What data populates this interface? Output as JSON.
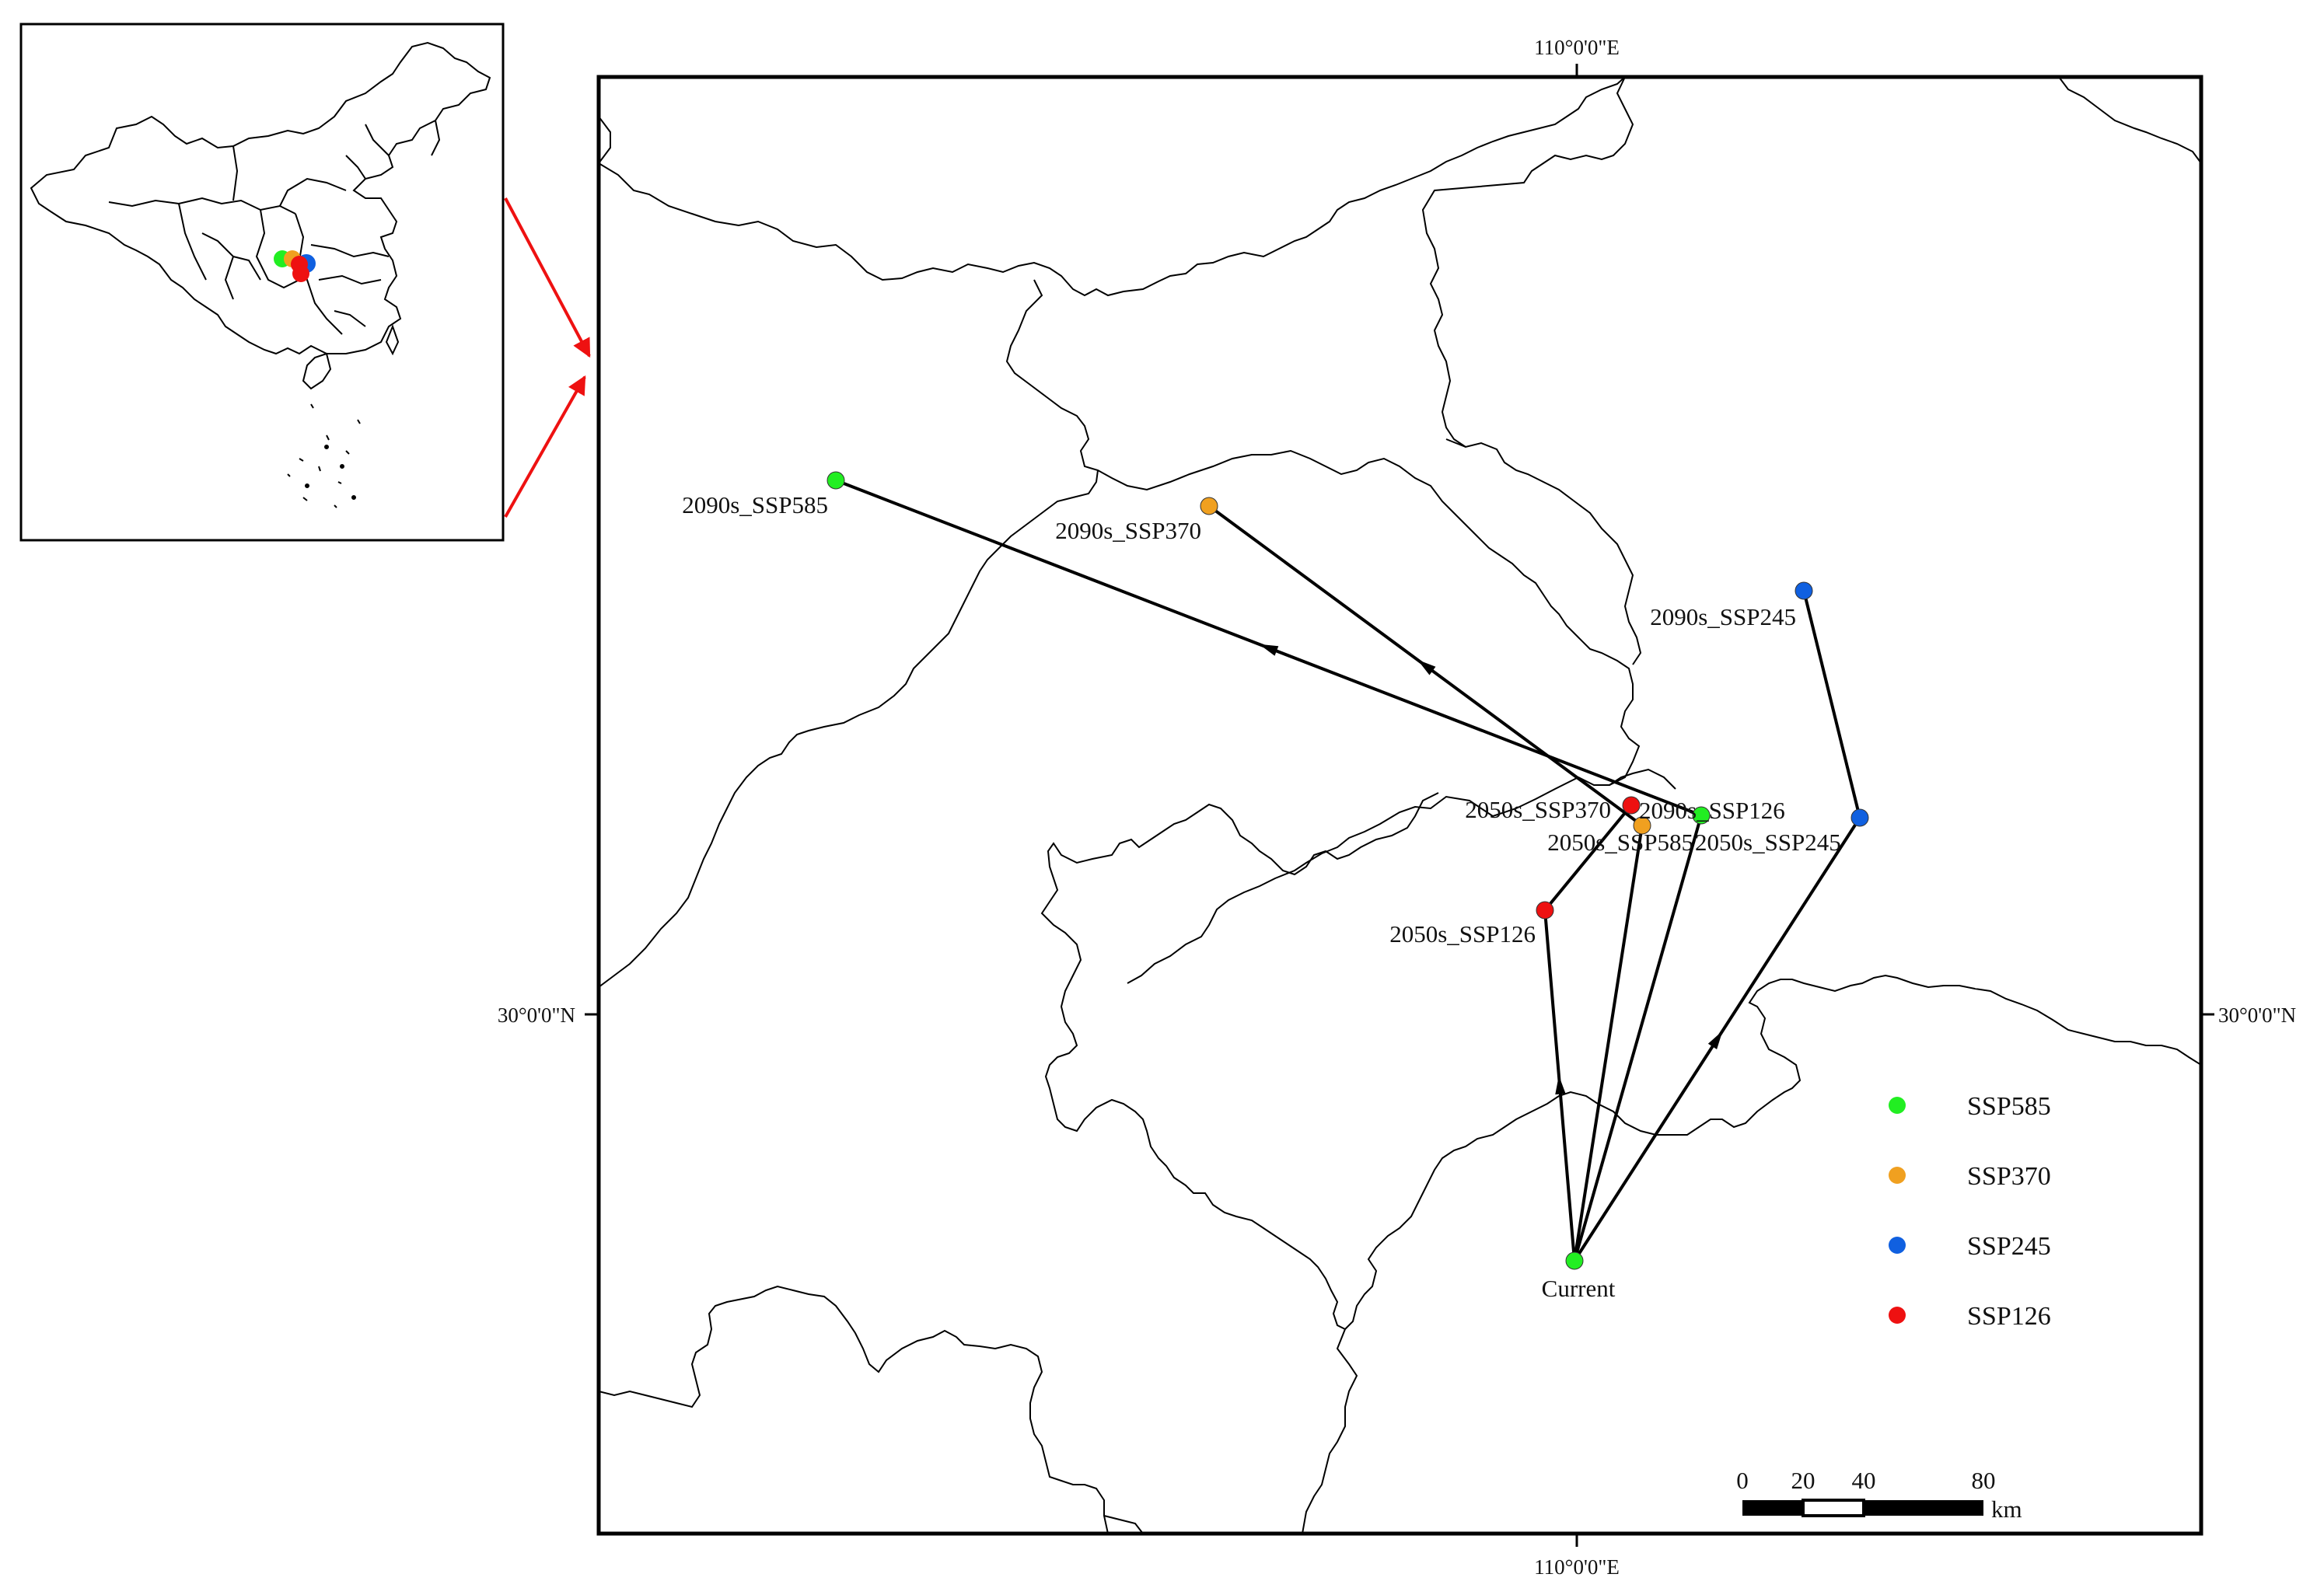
{
  "graticule": {
    "top_lon": "110°0'0\"E",
    "bottom_lon": "110°0'0\"E",
    "left_lat": "30°0'0\"N",
    "right_lat": "30°0'0\"N"
  },
  "colors": {
    "SSP585": "#22ee22",
    "SSP370": "#f0a020",
    "SSP245": "#1060e0",
    "SSP126": "#ee1111",
    "inset_arrow": "#ee1111"
  },
  "points": [
    {
      "id": "current",
      "label": "Current",
      "series": "SSP585"
    },
    {
      "id": "2050s_ssp126",
      "label": "2050s_SSP126",
      "series": "SSP126"
    },
    {
      "id": "2050s_ssp370",
      "label": "2050s_SSP370",
      "series": "SSP126"
    },
    {
      "id": "2050s_ssp585",
      "label": "2050s_SSP585",
      "series": "SSP370"
    },
    {
      "id": "2090s_ssp126",
      "label": "2090s_SSP126",
      "series": "SSP585"
    },
    {
      "id": "2050s_ssp245",
      "label": "2050s_SSP245",
      "series": "SSP245"
    },
    {
      "id": "2090s_ssp245",
      "label": "2090s_SSP245",
      "series": "SSP245"
    },
    {
      "id": "2090s_ssp370",
      "label": "2090s_SSP370",
      "series": "SSP370"
    },
    {
      "id": "2090s_ssp585",
      "label": "2090s_SSP585",
      "series": "SSP585"
    }
  ],
  "legend": [
    {
      "label": "SSP585",
      "color": "#22ee22"
    },
    {
      "label": "SSP370",
      "color": "#f0a020"
    },
    {
      "label": "SSP245",
      "color": "#1060e0"
    },
    {
      "label": "SSP126",
      "color": "#ee1111"
    }
  ],
  "scale_bar": {
    "ticks": [
      "0",
      "20",
      "40",
      "80"
    ],
    "unit": "km"
  }
}
